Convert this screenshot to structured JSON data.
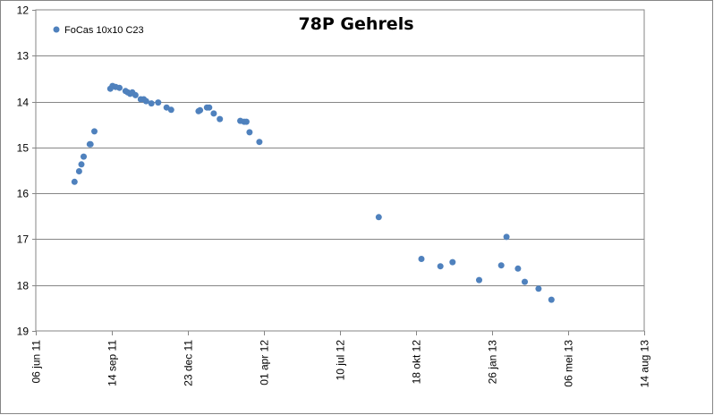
{
  "chart_data": {
    "type": "scatter",
    "title": "78P Gehrels",
    "xlabel": "",
    "ylabel": "",
    "y_reversed": true,
    "ylim": [
      12,
      19
    ],
    "y_ticks": [
      "12",
      "13",
      "14",
      "15",
      "16",
      "17",
      "18",
      "19"
    ],
    "xlim": [
      "2011-06-06",
      "2013-08-14"
    ],
    "x_ticks": [
      "06 jun 11",
      "14 sep 11",
      "23 dec 11",
      "01 apr 12",
      "10 jul 12",
      "18 okt 12",
      "26 jan 13",
      "06 mei 13",
      "14 aug 13"
    ],
    "grid": "horizontal",
    "legend_position": "top-left",
    "marker_color": "#4f81bd",
    "series": [
      {
        "name": "FoCas 10x10  C23",
        "x": [
          "2011-07-27",
          "2011-08-02",
          "2011-08-05",
          "2011-08-08",
          "2011-08-16",
          "2011-08-17",
          "2011-08-22",
          "2011-09-12",
          "2011-09-15",
          "2011-09-19",
          "2011-09-24",
          "2011-10-02",
          "2011-10-05",
          "2011-10-08",
          "2011-10-11",
          "2011-10-15",
          "2011-10-22",
          "2011-10-26",
          "2011-10-29",
          "2011-11-05",
          "2011-11-14",
          "2011-11-25",
          "2011-12-01",
          "2012-01-06",
          "2012-01-08",
          "2012-01-17",
          "2012-01-20",
          "2012-01-26",
          "2012-02-03",
          "2012-03-01",
          "2012-03-06",
          "2012-03-09",
          "2012-03-13",
          "2012-03-26",
          "2012-08-30",
          "2012-10-25",
          "2012-11-19",
          "2012-12-05",
          "2013-01-09",
          "2013-02-07",
          "2013-02-14",
          "2013-03-01",
          "2013-03-10",
          "2013-03-28",
          "2013-04-14"
        ],
        "y": [
          15.75,
          15.52,
          15.37,
          15.2,
          14.93,
          14.93,
          14.65,
          13.72,
          13.66,
          13.68,
          13.7,
          13.77,
          13.8,
          13.83,
          13.8,
          13.86,
          13.95,
          13.95,
          13.99,
          14.04,
          14.02,
          14.13,
          14.18,
          14.21,
          14.19,
          14.13,
          14.13,
          14.26,
          14.38,
          14.42,
          14.44,
          14.44,
          14.67,
          14.88,
          16.52,
          17.43,
          17.59,
          17.5,
          17.89,
          17.57,
          16.95,
          17.64,
          17.93,
          18.08,
          18.32
        ]
      }
    ]
  }
}
